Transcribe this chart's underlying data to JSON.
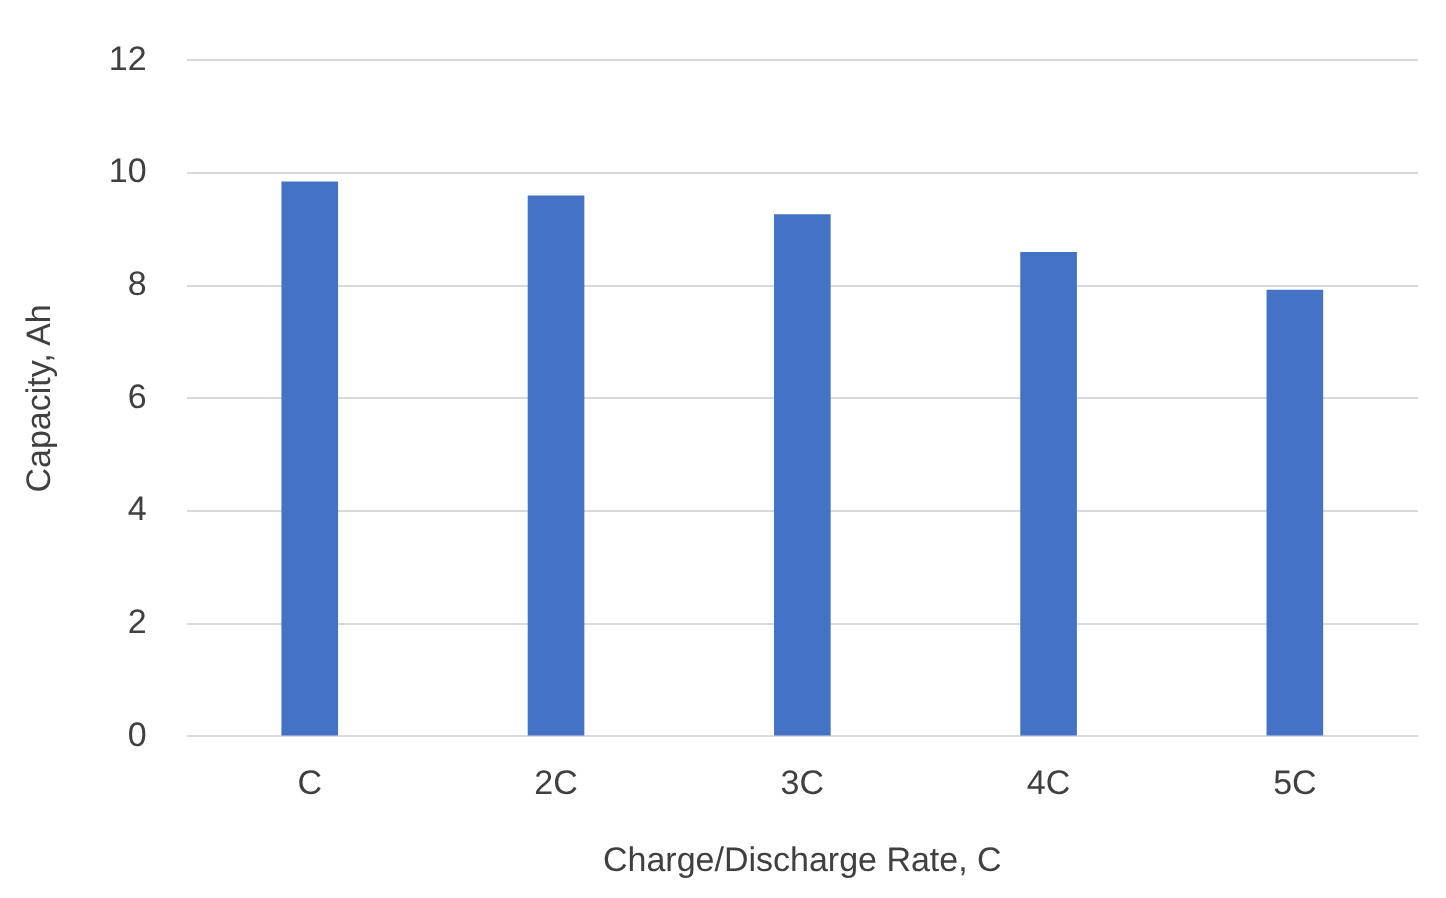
{
  "chart_data": {
    "type": "bar",
    "xlabel": "Charge/Discharge Rate, C",
    "ylabel": "Capacity, Ah",
    "categories": [
      "C",
      "2C",
      "3C",
      "4C",
      "5C"
    ],
    "values": [
      9.85,
      9.6,
      9.27,
      8.6,
      7.93
    ],
    "color": "#4472c4",
    "ylim": [
      0,
      12
    ],
    "yticks": [
      0,
      2,
      4,
      6,
      8,
      10,
      12
    ],
    "grid": "y",
    "legend": false
  }
}
